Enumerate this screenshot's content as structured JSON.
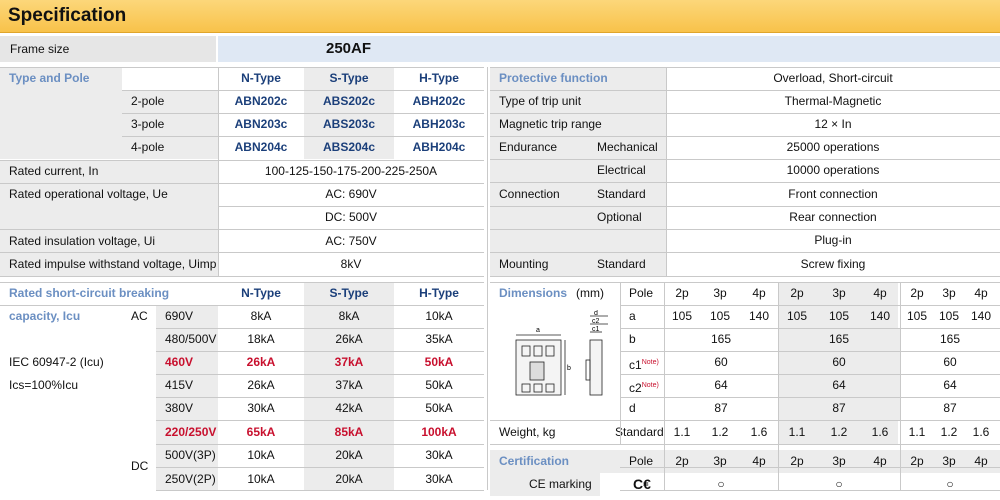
{
  "title": "Specification",
  "frame": {
    "label": "Frame size",
    "value": "250AF"
  },
  "type_pole": {
    "label": "Type and Pole",
    "cols": [
      "N-Type",
      "S-Type",
      "H-Type"
    ],
    "rows": [
      {
        "pole": "2-pole",
        "n": "ABN202c",
        "s": "ABS202c",
        "h": "ABH202c"
      },
      {
        "pole": "3-pole",
        "n": "ABN203c",
        "s": "ABS203c",
        "h": "ABH203c"
      },
      {
        "pole": "4-pole",
        "n": "ABN204c",
        "s": "ABS204c",
        "h": "ABH204c"
      }
    ]
  },
  "rated": {
    "current_label": "Rated current, In",
    "current": "100-125-150-175-200-225-250A",
    "op_label": "Rated operational voltage, Ue",
    "op_ac": "AC: 690V",
    "op_dc": "DC: 500V",
    "ins_label": "Rated insulation voltage, Ui",
    "ins": "AC: 750V",
    "imp_label": "Rated impulse withstand voltage, Uimp",
    "imp": "8kV"
  },
  "breaking": {
    "label1": "Rated short-circuit breaking",
    "label2": "capacity, Icu",
    "std1": "IEC 60947-2 (Icu)",
    "std2": "Ics=100%Icu",
    "ac": "AC",
    "dc": "DC",
    "cols": [
      "N-Type",
      "S-Type",
      "H-Type"
    ],
    "rows": [
      {
        "v": "690V",
        "n": "8kA",
        "s": "8kA",
        "h": "10kA"
      },
      {
        "v": "480/500V",
        "n": "18kA",
        "s": "26kA",
        "h": "35kA"
      },
      {
        "v": "460V",
        "n": "26kA",
        "s": "37kA",
        "h": "50kA"
      },
      {
        "v": "415V",
        "n": "26kA",
        "s": "37kA",
        "h": "50kA"
      },
      {
        "v": "380V",
        "n": "30kA",
        "s": "42kA",
        "h": "50kA"
      },
      {
        "v": "220/250V",
        "n": "65kA",
        "s": "85kA",
        "h": "100kA"
      },
      {
        "v": "500V(3P)",
        "n": "10kA",
        "s": "20kA",
        "h": "30kA"
      },
      {
        "v": "250V(2P)",
        "n": "10kA",
        "s": "20kA",
        "h": "30kA"
      }
    ]
  },
  "protective": {
    "label": "Protective function",
    "value": "Overload, Short-circuit",
    "trip_label": "Type of trip unit",
    "trip": "Thermal-Magnetic",
    "mag_label": "Magnetic trip range",
    "mag": "12 × In",
    "end_label": "Endurance",
    "mech_label": "Mechanical",
    "mech": "25000 operations",
    "elec_label": "Electrical",
    "elec": "10000 operations",
    "conn_label": "Connection",
    "std_label": "Standard",
    "std": "Front connection",
    "opt_label": "Optional",
    "opt": "Rear connection",
    "plug": "Plug-in",
    "mount_label": "Mounting",
    "mount_std": "Standard",
    "mount": "Screw fixing"
  },
  "dimensions": {
    "label": "Dimensions",
    "unit": "(mm)",
    "pole_label": "Pole",
    "poles": [
      "2p",
      "3p",
      "4p",
      "2p",
      "3p",
      "4p",
      "2p",
      "3p",
      "4p"
    ],
    "a_label": "a",
    "a": [
      "105",
      "105",
      "140",
      "105",
      "105",
      "140",
      "105",
      "105",
      "140"
    ],
    "b_label": "b",
    "b": [
      "165",
      "165",
      "165"
    ],
    "c1_label": "c1",
    "c2_label": "c2",
    "note": "Note)",
    "c1": [
      "60",
      "60",
      "60"
    ],
    "c2": [
      "64",
      "64",
      "64"
    ],
    "d_label": "d",
    "d": [
      "87",
      "87",
      "87"
    ],
    "diagram": {
      "a": "a",
      "b": "b",
      "c1": "c1",
      "c2": "c2",
      "d": "d"
    }
  },
  "weight": {
    "label": "Weight, kg",
    "std": "Standard",
    "values": [
      "1.1",
      "1.2",
      "1.6",
      "1.1",
      "1.2",
      "1.6",
      "1.1",
      "1.2",
      "1.6"
    ]
  },
  "certification": {
    "label": "Certification",
    "pole_label": "Pole",
    "poles": [
      "2p",
      "3p",
      "4p",
      "2p",
      "3p",
      "4p",
      "2p",
      "3p",
      "4p"
    ],
    "ce_label": "CE marking",
    "ce_icon": "C€",
    "mark": "○"
  }
}
